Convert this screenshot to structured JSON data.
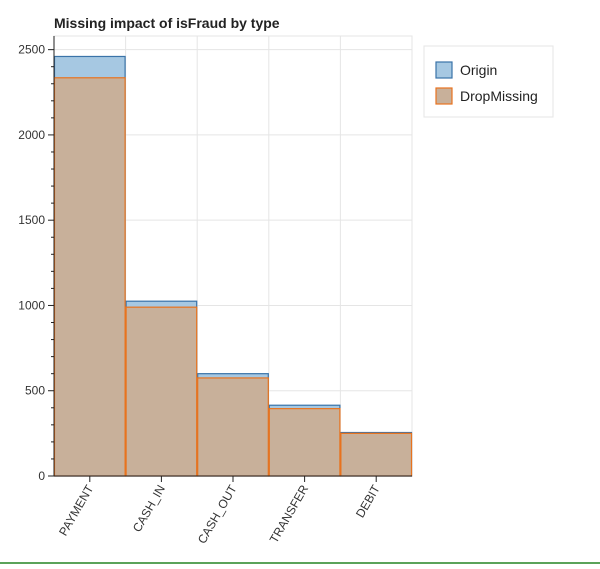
{
  "chart_data": {
    "type": "bar",
    "title": "Missing impact of isFraud by type",
    "xlabel": "",
    "ylabel": "",
    "categories": [
      "PAYMENT",
      "CASH_IN",
      "CASH_OUT",
      "TRANSFER",
      "DEBIT"
    ],
    "series": [
      {
        "name": "Origin",
        "values": [
          2460,
          1025,
          600,
          415,
          255
        ],
        "color": "#a6c8e2",
        "stroke": "#3a73a8"
      },
      {
        "name": "DropMissing",
        "values": [
          2335,
          990,
          575,
          395,
          250
        ],
        "color": "#c8b09a",
        "stroke": "#e8731e"
      }
    ],
    "overlay": true,
    "ylim": [
      0,
      2580
    ],
    "yticks": [
      0,
      500,
      1000,
      1500,
      2000,
      2500
    ],
    "ytick_labels": [
      "0",
      "500",
      "1000",
      "1500",
      "2000",
      "2500"
    ],
    "grid": true,
    "legend_position": "top-right"
  }
}
